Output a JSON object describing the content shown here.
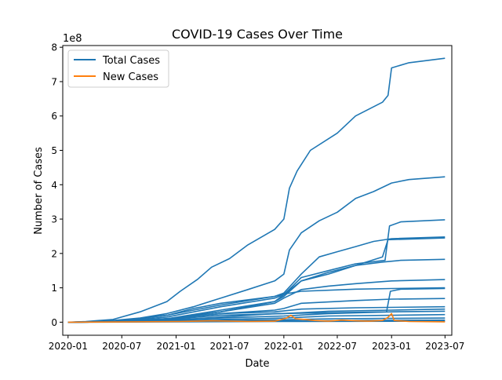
{
  "chart_data": {
    "type": "line",
    "title": "COVID-19 Cases Over Time",
    "xlabel": "Date",
    "ylabel": "Number of Cases",
    "y_offset_label": "1e8",
    "x_range": [
      "2019-12-14",
      "2023-07-24"
    ],
    "y_range_1e8": [
      -0.38,
      8.05
    ],
    "x_ticks": [
      "2020-01",
      "2020-07",
      "2021-01",
      "2021-07",
      "2022-01",
      "2022-07",
      "2023-01",
      "2023-07"
    ],
    "y_ticks": [
      0,
      1,
      2,
      3,
      4,
      5,
      6,
      7,
      8
    ],
    "grid": false,
    "legend_position": "upper-left",
    "colors": {
      "total": "#1f77b4",
      "new": "#ff7f0e"
    },
    "series": [
      {
        "name": "Total Cases",
        "unit": "1e8",
        "lines": [
          [
            [
              "2020-01-01",
              0
            ],
            [
              "2020-03-01",
              0.02
            ],
            [
              "2020-06-01",
              0.08
            ],
            [
              "2020-09-01",
              0.3
            ],
            [
              "2020-12-01",
              0.6
            ],
            [
              "2021-01-15",
              0.9
            ],
            [
              "2021-03-15",
              1.25
            ],
            [
              "2021-05-01",
              1.6
            ],
            [
              "2021-07-01",
              1.85
            ],
            [
              "2021-09-01",
              2.25
            ],
            [
              "2021-12-01",
              2.7
            ],
            [
              "2022-01-01",
              3.0
            ],
            [
              "2022-01-20",
              3.9
            ],
            [
              "2022-02-15",
              4.4
            ],
            [
              "2022-04-01",
              5.0
            ],
            [
              "2022-07-01",
              5.5
            ],
            [
              "2022-09-01",
              6.0
            ],
            [
              "2022-12-01",
              6.4
            ],
            [
              "2022-12-20",
              6.6
            ],
            [
              "2023-01-01",
              7.4
            ],
            [
              "2023-03-01",
              7.55
            ],
            [
              "2023-07-01",
              7.68
            ]
          ],
          [
            [
              "2020-01-01",
              0
            ],
            [
              "2020-03-01",
              0.01
            ],
            [
              "2020-06-01",
              0.05
            ],
            [
              "2020-09-01",
              0.12
            ],
            [
              "2020-12-01",
              0.25
            ],
            [
              "2021-03-01",
              0.45
            ],
            [
              "2021-06-01",
              0.7
            ],
            [
              "2021-09-01",
              0.95
            ],
            [
              "2021-12-01",
              1.2
            ],
            [
              "2022-01-01",
              1.4
            ],
            [
              "2022-01-20",
              2.1
            ],
            [
              "2022-03-01",
              2.6
            ],
            [
              "2022-05-01",
              2.95
            ],
            [
              "2022-07-01",
              3.2
            ],
            [
              "2022-09-01",
              3.6
            ],
            [
              "2022-11-01",
              3.8
            ],
            [
              "2023-01-01",
              4.05
            ],
            [
              "2023-03-01",
              4.15
            ],
            [
              "2023-07-01",
              4.23
            ]
          ],
          [
            [
              "2020-01-01",
              0
            ],
            [
              "2020-06-01",
              0.02
            ],
            [
              "2020-12-01",
              0.1
            ],
            [
              "2021-06-01",
              0.3
            ],
            [
              "2021-12-01",
              0.6
            ],
            [
              "2022-01-01",
              0.8
            ],
            [
              "2022-03-01",
              1.3
            ],
            [
              "2022-06-01",
              1.5
            ],
            [
              "2022-09-01",
              1.7
            ],
            [
              "2022-12-10",
              1.8
            ],
            [
              "2022-12-25",
              2.8
            ],
            [
              "2023-02-01",
              2.92
            ],
            [
              "2023-07-01",
              2.98
            ]
          ],
          [
            [
              "2020-01-01",
              0
            ],
            [
              "2020-06-01",
              0.02
            ],
            [
              "2020-12-01",
              0.2
            ],
            [
              "2021-03-01",
              0.4
            ],
            [
              "2021-06-01",
              0.55
            ],
            [
              "2021-12-01",
              0.75
            ],
            [
              "2022-01-01",
              0.85
            ],
            [
              "2022-03-01",
              1.4
            ],
            [
              "2022-05-01",
              1.9
            ],
            [
              "2022-07-01",
              2.05
            ],
            [
              "2022-09-01",
              2.2
            ],
            [
              "2022-11-01",
              2.35
            ],
            [
              "2023-01-01",
              2.43
            ],
            [
              "2023-07-01",
              2.48
            ]
          ],
          [
            [
              "2020-01-01",
              0
            ],
            [
              "2020-06-01",
              0.02
            ],
            [
              "2020-12-01",
              0.15
            ],
            [
              "2021-06-01",
              0.45
            ],
            [
              "2021-12-01",
              0.7
            ],
            [
              "2022-01-01",
              0.8
            ],
            [
              "2022-03-01",
              1.2
            ],
            [
              "2022-06-01",
              1.4
            ],
            [
              "2022-09-01",
              1.65
            ],
            [
              "2022-12-01",
              1.9
            ],
            [
              "2022-12-20",
              2.4
            ],
            [
              "2023-07-01",
              2.45
            ]
          ],
          [
            [
              "2020-01-01",
              0
            ],
            [
              "2020-06-01",
              0.01
            ],
            [
              "2020-12-01",
              0.1
            ],
            [
              "2021-06-01",
              0.35
            ],
            [
              "2021-12-01",
              0.6
            ],
            [
              "2022-01-01",
              0.75
            ],
            [
              "2022-03-01",
              1.2
            ],
            [
              "2022-06-01",
              1.45
            ],
            [
              "2022-09-01",
              1.65
            ],
            [
              "2022-12-01",
              1.75
            ],
            [
              "2023-02-01",
              1.8
            ],
            [
              "2023-07-01",
              1.83
            ]
          ],
          [
            [
              "2020-01-01",
              0
            ],
            [
              "2020-06-01",
              0.01
            ],
            [
              "2020-12-01",
              0.1
            ],
            [
              "2021-06-01",
              0.3
            ],
            [
              "2021-12-01",
              0.55
            ],
            [
              "2022-01-01",
              0.7
            ],
            [
              "2022-03-01",
              0.95
            ],
            [
              "2022-06-01",
              1.05
            ],
            [
              "2022-09-01",
              1.12
            ],
            [
              "2023-01-01",
              1.2
            ],
            [
              "2023-07-01",
              1.24
            ]
          ],
          [
            [
              "2020-01-01",
              0
            ],
            [
              "2020-06-01",
              0.02
            ],
            [
              "2020-12-01",
              0.2
            ],
            [
              "2021-03-01",
              0.35
            ],
            [
              "2021-06-01",
              0.5
            ],
            [
              "2021-12-01",
              0.75
            ],
            [
              "2022-01-01",
              0.82
            ],
            [
              "2022-03-01",
              0.9
            ],
            [
              "2022-09-01",
              0.96
            ],
            [
              "2023-01-01",
              0.98
            ],
            [
              "2023-07-01",
              1.0
            ]
          ],
          [
            [
              "2020-01-01",
              0
            ],
            [
              "2020-06-01",
              0.01
            ],
            [
              "2020-12-01",
              0.05
            ],
            [
              "2021-06-01",
              0.15
            ],
            [
              "2021-12-01",
              0.25
            ],
            [
              "2022-12-15",
              0.3
            ],
            [
              "2022-12-28",
              0.9
            ],
            [
              "2023-02-01",
              0.96
            ],
            [
              "2023-07-01",
              0.98
            ]
          ],
          [
            [
              "2020-01-01",
              0
            ],
            [
              "2020-06-01",
              0.01
            ],
            [
              "2020-12-01",
              0.1
            ],
            [
              "2021-06-01",
              0.25
            ],
            [
              "2021-12-01",
              0.35
            ],
            [
              "2022-01-01",
              0.4
            ],
            [
              "2022-03-01",
              0.55
            ],
            [
              "2022-09-01",
              0.63
            ],
            [
              "2023-01-01",
              0.67
            ],
            [
              "2023-07-01",
              0.69
            ]
          ],
          [
            [
              "2020-01-01",
              0
            ],
            [
              "2020-06-01",
              0.01
            ],
            [
              "2021-01-01",
              0.12
            ],
            [
              "2021-06-01",
              0.25
            ],
            [
              "2021-12-01",
              0.3
            ],
            [
              "2022-03-01",
              0.38
            ],
            [
              "2022-09-01",
              0.42
            ],
            [
              "2023-07-01",
              0.45
            ]
          ],
          [
            [
              "2020-01-01",
              0
            ],
            [
              "2020-06-01",
              0.01
            ],
            [
              "2021-01-01",
              0.1
            ],
            [
              "2021-06-01",
              0.2
            ],
            [
              "2022-01-01",
              0.25
            ],
            [
              "2022-06-01",
              0.32
            ],
            [
              "2023-01-01",
              0.35
            ],
            [
              "2023-07-01",
              0.38
            ]
          ],
          [
            [
              "2020-01-01",
              0
            ],
            [
              "2020-09-01",
              0.05
            ],
            [
              "2021-06-01",
              0.12
            ],
            [
              "2022-01-01",
              0.18
            ],
            [
              "2022-06-01",
              0.25
            ],
            [
              "2023-01-01",
              0.3
            ],
            [
              "2023-07-01",
              0.32
            ]
          ],
          [
            [
              "2020-01-01",
              0
            ],
            [
              "2021-01-01",
              0.05
            ],
            [
              "2022-01-01",
              0.12
            ],
            [
              "2022-06-01",
              0.18
            ],
            [
              "2023-07-01",
              0.22
            ]
          ],
          [
            [
              "2020-01-01",
              0
            ],
            [
              "2021-01-01",
              0.03
            ],
            [
              "2022-01-01",
              0.07
            ],
            [
              "2022-06-01",
              0.1
            ],
            [
              "2023-07-01",
              0.12
            ]
          ],
          [
            [
              "2020-01-01",
              0
            ],
            [
              "2021-01-01",
              0.02
            ],
            [
              "2022-01-01",
              0.04
            ],
            [
              "2023-07-01",
              0.06
            ]
          ],
          [
            [
              "2020-01-01",
              0
            ],
            [
              "2022-01-01",
              0.02
            ],
            [
              "2023-07-01",
              0.03
            ]
          ]
        ]
      },
      {
        "name": "New Cases",
        "unit": "1e8",
        "points": [
          [
            "2020-01-01",
            0
          ],
          [
            "2021-01-15",
            0.02
          ],
          [
            "2021-05-01",
            0.04
          ],
          [
            "2021-09-01",
            0.02
          ],
          [
            "2021-12-01",
            0.03
          ],
          [
            "2022-01-10",
            0.12
          ],
          [
            "2022-01-25",
            0.2
          ],
          [
            "2022-02-10",
            0.1
          ],
          [
            "2022-03-15",
            0.08
          ],
          [
            "2022-04-15",
            0.05
          ],
          [
            "2022-06-01",
            0.03
          ],
          [
            "2022-07-15",
            0.06
          ],
          [
            "2022-09-01",
            0.04
          ],
          [
            "2022-10-15",
            0.03
          ],
          [
            "2022-12-01",
            0.05
          ],
          [
            "2022-12-20",
            0.14
          ],
          [
            "2023-01-01",
            0.25
          ],
          [
            "2023-01-10",
            0.05
          ],
          [
            "2023-03-01",
            0.02
          ],
          [
            "2023-07-01",
            0.01
          ]
        ]
      }
    ]
  }
}
